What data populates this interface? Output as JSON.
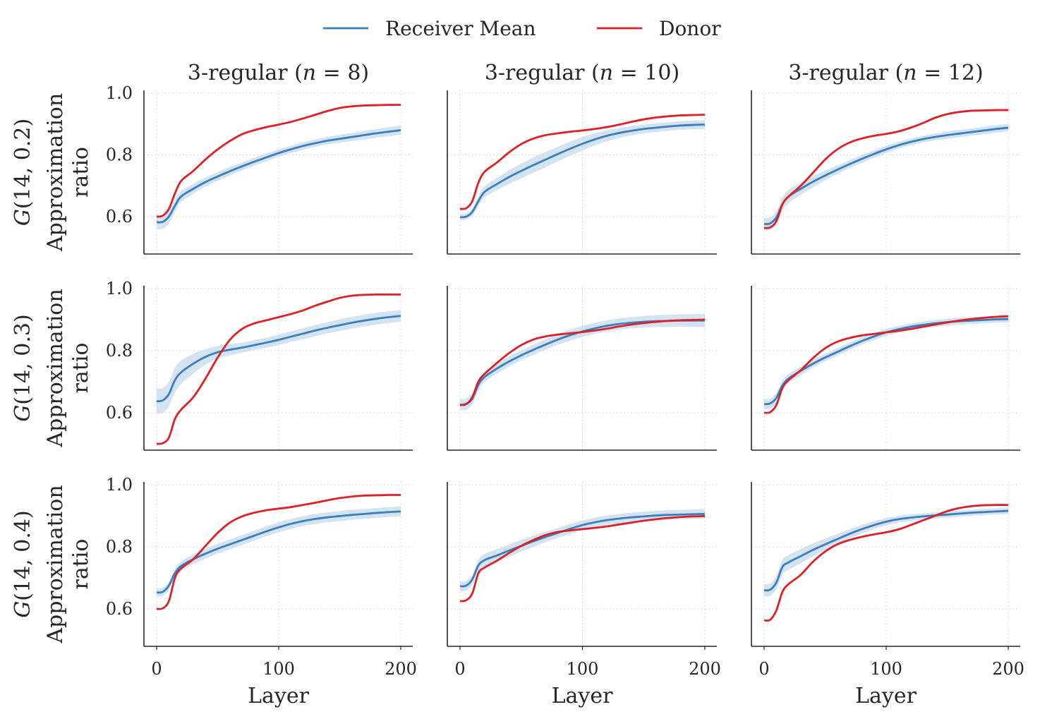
{
  "chart_data": {
    "type": "line",
    "layout": "3x3 grid of line subplots, shared x and y axes",
    "legend": {
      "placement": "top-center",
      "entries": [
        {
          "label": "Receiver Mean",
          "color": "#3a7ebf"
        },
        {
          "label": "Donor",
          "color": "#e01f25"
        }
      ]
    },
    "band_color": "#c6d9ee",
    "x_axis": {
      "label": "Layer",
      "ticks": [
        0,
        100,
        200
      ],
      "range": [
        -10,
        210
      ]
    },
    "y_axis": {
      "label": "Approximation ratio",
      "ticks": [
        0.6,
        0.8,
        1.0
      ],
      "tick_labels": [
        "0.6",
        "0.8",
        "1.0"
      ],
      "range": [
        0.48,
        1.01
      ]
    },
    "grid": "dotted",
    "column_titles": [
      "3-regular (n = 8)",
      "3-regular (n = 10)",
      "3-regular (n = 12)"
    ],
    "row_labels": [
      "G(14, 0.2)",
      "G(14, 0.3)",
      "G(14, 0.4)"
    ],
    "row_label_parts": [
      {
        "italic": "G",
        "rest": "(14, 0.2)"
      },
      {
        "italic": "G",
        "rest": "(14, 0.3)"
      },
      {
        "italic": "G",
        "rest": "(14, 0.4)"
      }
    ],
    "column_title_parts": [
      {
        "pre": "3-regular (",
        "var": "n",
        "post": " = 8)"
      },
      {
        "pre": "3-regular (",
        "var": "n",
        "post": " = 10)"
      },
      {
        "pre": "3-regular (",
        "var": "n",
        "post": " = 12)"
      }
    ],
    "x": [
      0,
      5,
      10,
      15,
      20,
      30,
      40,
      50,
      60,
      70,
      80,
      90,
      100,
      110,
      120,
      130,
      140,
      150,
      160,
      170,
      180,
      190,
      200
    ],
    "panels": [
      {
        "row": 0,
        "col": 0,
        "receiver_mean": [
          0.582,
          0.583,
          0.6,
          0.635,
          0.665,
          0.69,
          0.712,
          0.73,
          0.747,
          0.763,
          0.778,
          0.792,
          0.806,
          0.818,
          0.829,
          0.838,
          0.846,
          0.852,
          0.858,
          0.864,
          0.87,
          0.875,
          0.88
        ],
        "band_halfwidth": [
          0.022,
          0.022,
          0.022,
          0.02,
          0.018,
          0.016,
          0.015,
          0.014,
          0.014,
          0.013,
          0.013,
          0.013,
          0.012,
          0.012,
          0.012,
          0.012,
          0.012,
          0.013,
          0.013,
          0.014,
          0.014,
          0.015,
          0.015
        ],
        "donor": [
          0.6,
          0.603,
          0.625,
          0.675,
          0.715,
          0.748,
          0.785,
          0.818,
          0.845,
          0.867,
          0.88,
          0.89,
          0.898,
          0.907,
          0.918,
          0.93,
          0.942,
          0.952,
          0.957,
          0.96,
          0.961,
          0.962,
          0.962
        ]
      },
      {
        "row": 0,
        "col": 1,
        "receiver_mean": [
          0.598,
          0.6,
          0.615,
          0.65,
          0.68,
          0.705,
          0.728,
          0.748,
          0.767,
          0.785,
          0.803,
          0.82,
          0.836,
          0.85,
          0.862,
          0.871,
          0.878,
          0.884,
          0.888,
          0.892,
          0.895,
          0.897,
          0.898
        ],
        "band_halfwidth": [
          0.01,
          0.01,
          0.012,
          0.015,
          0.018,
          0.02,
          0.022,
          0.024,
          0.025,
          0.025,
          0.024,
          0.023,
          0.022,
          0.02,
          0.018,
          0.016,
          0.015,
          0.014,
          0.014,
          0.014,
          0.014,
          0.014,
          0.014
        ],
        "donor": [
          0.625,
          0.627,
          0.65,
          0.71,
          0.745,
          0.775,
          0.808,
          0.835,
          0.853,
          0.864,
          0.87,
          0.875,
          0.879,
          0.884,
          0.89,
          0.898,
          0.907,
          0.915,
          0.921,
          0.925,
          0.928,
          0.929,
          0.93
        ]
      },
      {
        "row": 0,
        "col": 2,
        "receiver_mean": [
          0.576,
          0.578,
          0.597,
          0.64,
          0.665,
          0.69,
          0.713,
          0.733,
          0.752,
          0.77,
          0.787,
          0.803,
          0.818,
          0.831,
          0.842,
          0.851,
          0.858,
          0.864,
          0.869,
          0.874,
          0.879,
          0.884,
          0.888
        ],
        "band_halfwidth": [
          0.02,
          0.02,
          0.02,
          0.022,
          0.022,
          0.02,
          0.018,
          0.016,
          0.014,
          0.013,
          0.013,
          0.012,
          0.012,
          0.011,
          0.011,
          0.011,
          0.011,
          0.012,
          0.012,
          0.012,
          0.012,
          0.012,
          0.012
        ],
        "donor": [
          0.563,
          0.565,
          0.585,
          0.64,
          0.665,
          0.7,
          0.742,
          0.785,
          0.818,
          0.84,
          0.853,
          0.862,
          0.868,
          0.876,
          0.888,
          0.903,
          0.92,
          0.932,
          0.939,
          0.943,
          0.944,
          0.945,
          0.945
        ]
      },
      {
        "row": 1,
        "col": 0,
        "receiver_mean": [
          0.637,
          0.64,
          0.66,
          0.705,
          0.73,
          0.758,
          0.78,
          0.795,
          0.803,
          0.81,
          0.818,
          0.826,
          0.835,
          0.845,
          0.855,
          0.865,
          0.874,
          0.882,
          0.89,
          0.897,
          0.903,
          0.908,
          0.912
        ],
        "band_halfwidth": [
          0.04,
          0.04,
          0.04,
          0.04,
          0.038,
          0.032,
          0.025,
          0.02,
          0.018,
          0.016,
          0.016,
          0.016,
          0.017,
          0.017,
          0.018,
          0.018,
          0.018,
          0.019,
          0.019,
          0.019,
          0.019,
          0.019,
          0.019
        ],
        "donor": [
          0.5,
          0.502,
          0.52,
          0.58,
          0.61,
          0.65,
          0.71,
          0.778,
          0.835,
          0.87,
          0.888,
          0.898,
          0.908,
          0.918,
          0.93,
          0.945,
          0.958,
          0.97,
          0.977,
          0.98,
          0.981,
          0.981,
          0.981
        ]
      },
      {
        "row": 1,
        "col": 1,
        "receiver_mean": [
          0.626,
          0.628,
          0.645,
          0.69,
          0.715,
          0.742,
          0.765,
          0.785,
          0.803,
          0.82,
          0.836,
          0.85,
          0.862,
          0.872,
          0.88,
          0.886,
          0.89,
          0.893,
          0.895,
          0.896,
          0.897,
          0.897,
          0.897
        ],
        "band_halfwidth": [
          0.018,
          0.018,
          0.018,
          0.018,
          0.017,
          0.016,
          0.016,
          0.016,
          0.016,
          0.017,
          0.017,
          0.018,
          0.018,
          0.018,
          0.018,
          0.018,
          0.018,
          0.019,
          0.019,
          0.02,
          0.02,
          0.021,
          0.022
        ],
        "donor": [
          0.625,
          0.628,
          0.65,
          0.7,
          0.725,
          0.76,
          0.792,
          0.818,
          0.836,
          0.846,
          0.852,
          0.856,
          0.86,
          0.865,
          0.871,
          0.878,
          0.884,
          0.889,
          0.893,
          0.896,
          0.898,
          0.899,
          0.9
        ]
      },
      {
        "row": 1,
        "col": 2,
        "receiver_mean": [
          0.628,
          0.63,
          0.648,
          0.688,
          0.71,
          0.735,
          0.758,
          0.778,
          0.796,
          0.814,
          0.831,
          0.846,
          0.859,
          0.869,
          0.877,
          0.883,
          0.888,
          0.892,
          0.895,
          0.897,
          0.899,
          0.901,
          0.902
        ],
        "band_halfwidth": [
          0.016,
          0.016,
          0.016,
          0.016,
          0.015,
          0.014,
          0.013,
          0.012,
          0.012,
          0.012,
          0.012,
          0.012,
          0.011,
          0.011,
          0.011,
          0.011,
          0.011,
          0.011,
          0.011,
          0.011,
          0.011,
          0.011,
          0.011
        ],
        "donor": [
          0.6,
          0.602,
          0.625,
          0.68,
          0.705,
          0.737,
          0.776,
          0.808,
          0.829,
          0.841,
          0.849,
          0.854,
          0.859,
          0.864,
          0.87,
          0.877,
          0.884,
          0.891,
          0.897,
          0.902,
          0.906,
          0.909,
          0.911
        ]
      },
      {
        "row": 2,
        "col": 0,
        "receiver_mean": [
          0.653,
          0.655,
          0.675,
          0.715,
          0.738,
          0.76,
          0.778,
          0.794,
          0.808,
          0.822,
          0.836,
          0.85,
          0.863,
          0.874,
          0.883,
          0.89,
          0.895,
          0.899,
          0.903,
          0.906,
          0.909,
          0.912,
          0.914
        ],
        "band_halfwidth": [
          0.013,
          0.013,
          0.013,
          0.014,
          0.015,
          0.016,
          0.016,
          0.016,
          0.016,
          0.016,
          0.016,
          0.016,
          0.016,
          0.016,
          0.016,
          0.016,
          0.016,
          0.016,
          0.016,
          0.016,
          0.016,
          0.016,
          0.016
        ],
        "donor": [
          0.6,
          0.602,
          0.625,
          0.7,
          0.73,
          0.76,
          0.803,
          0.845,
          0.878,
          0.898,
          0.91,
          0.918,
          0.923,
          0.928,
          0.935,
          0.942,
          0.95,
          0.957,
          0.962,
          0.965,
          0.966,
          0.967,
          0.967
        ]
      },
      {
        "row": 2,
        "col": 1,
        "receiver_mean": [
          0.673,
          0.675,
          0.695,
          0.74,
          0.757,
          0.772,
          0.788,
          0.803,
          0.818,
          0.832,
          0.845,
          0.858,
          0.87,
          0.879,
          0.886,
          0.891,
          0.895,
          0.898,
          0.901,
          0.903,
          0.904,
          0.905,
          0.906
        ],
        "band_halfwidth": [
          0.016,
          0.016,
          0.016,
          0.018,
          0.02,
          0.02,
          0.02,
          0.019,
          0.018,
          0.017,
          0.016,
          0.016,
          0.015,
          0.015,
          0.015,
          0.015,
          0.015,
          0.015,
          0.015,
          0.015,
          0.015,
          0.015,
          0.015
        ],
        "donor": [
          0.625,
          0.628,
          0.65,
          0.715,
          0.733,
          0.755,
          0.78,
          0.803,
          0.822,
          0.838,
          0.848,
          0.853,
          0.857,
          0.861,
          0.866,
          0.872,
          0.878,
          0.884,
          0.889,
          0.893,
          0.896,
          0.898,
          0.899
        ]
      },
      {
        "row": 2,
        "col": 2,
        "receiver_mean": [
          0.66,
          0.662,
          0.685,
          0.735,
          0.75,
          0.77,
          0.79,
          0.808,
          0.825,
          0.842,
          0.857,
          0.87,
          0.881,
          0.889,
          0.894,
          0.898,
          0.901,
          0.904,
          0.907,
          0.91,
          0.912,
          0.914,
          0.916
        ],
        "band_halfwidth": [
          0.02,
          0.02,
          0.022,
          0.024,
          0.024,
          0.023,
          0.021,
          0.019,
          0.017,
          0.015,
          0.014,
          0.013,
          0.012,
          0.011,
          0.011,
          0.01,
          0.01,
          0.01,
          0.01,
          0.01,
          0.01,
          0.01,
          0.01
        ],
        "donor": [
          0.563,
          0.565,
          0.595,
          0.655,
          0.68,
          0.71,
          0.752,
          0.785,
          0.808,
          0.822,
          0.832,
          0.84,
          0.847,
          0.856,
          0.87,
          0.885,
          0.9,
          0.915,
          0.925,
          0.931,
          0.934,
          0.935,
          0.935
        ]
      }
    ]
  }
}
